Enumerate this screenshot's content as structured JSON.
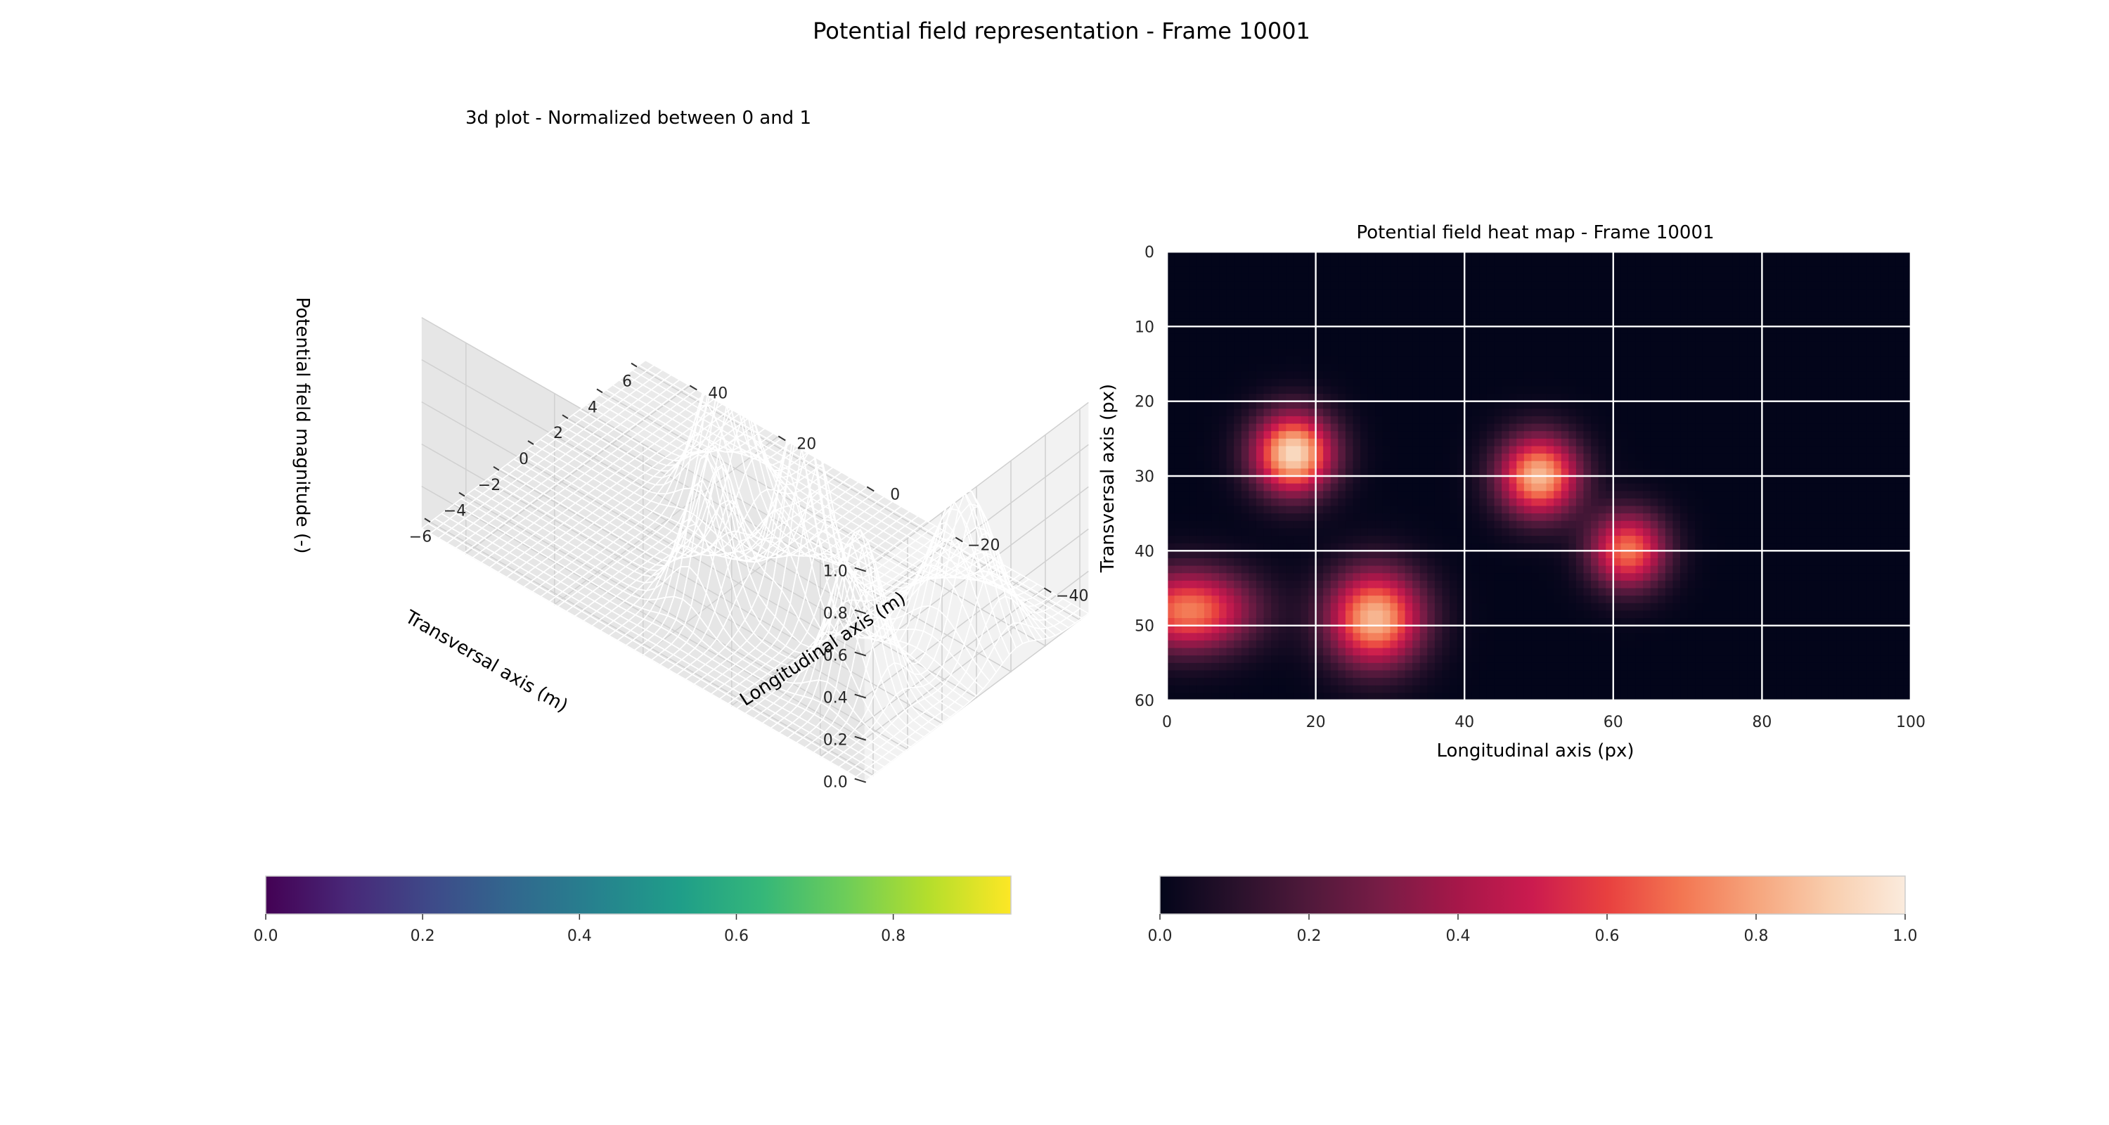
{
  "figure": {
    "suptitle": "Potential field representation - Frame 10001"
  },
  "chart_data": [
    {
      "type": "surface3d",
      "title": "3d plot - Normalized between 0 and 1",
      "xlabel": "Longitudinal axis (m)",
      "ylabel": "Transversal axis (m)",
      "zlabel": "Potential field magnitude (-)",
      "xlim": [
        -50,
        50
      ],
      "ylim": [
        -6.5,
        6.5
      ],
      "zlim": [
        0,
        1
      ],
      "x_ticks": [
        -40,
        -20,
        0,
        20,
        40
      ],
      "y_ticks": [
        -6,
        -4,
        -2,
        0,
        2,
        4,
        6
      ],
      "z_ticks": [
        "0.0",
        "0.2",
        "0.4",
        "0.6",
        "0.8",
        "1.0"
      ],
      "colormap": "viridis",
      "peaks": [
        {
          "x": -33,
          "y": -2.5,
          "z": 0.75,
          "sx": 4.5,
          "sy": 0.9
        },
        {
          "x": 0,
          "y": -2.5,
          "z": 0.75,
          "sx": 4.5,
          "sy": 0.9
        },
        {
          "x": -12,
          "y": -0.3,
          "z": 0.95,
          "sx": 4.5,
          "sy": 0.9
        },
        {
          "x": 16,
          "y": 2.4,
          "z": 0.75,
          "sx": 4.5,
          "sy": 0.9
        },
        {
          "x": -38,
          "y": 2.4,
          "z": 0.7,
          "sx": 6.0,
          "sy": 1.1
        }
      ],
      "colorbar": {
        "min": 0.0,
        "max": 0.95,
        "ticks": [
          "0.0",
          "0.2",
          "0.4",
          "0.6",
          "0.8"
        ]
      }
    },
    {
      "type": "heatmap",
      "title": "Potential field heat map - Frame 10001",
      "xlabel": "Longitudinal axis (px)",
      "ylabel": "Transversal axis (px)",
      "xlim": [
        0,
        100
      ],
      "ylim": [
        60,
        0
      ],
      "x_ticks": [
        "0",
        "20",
        "40",
        "60",
        "80",
        "100"
      ],
      "y_ticks": [
        "0",
        "10",
        "20",
        "30",
        "40",
        "50",
        "60"
      ],
      "colormap": "rocket",
      "grid": true,
      "blobs": [
        {
          "x": 17,
          "y": 27,
          "v": 0.95,
          "sx": 3.8,
          "sy": 3.8
        },
        {
          "x": 50,
          "y": 30,
          "v": 0.85,
          "sx": 3.8,
          "sy": 3.8
        },
        {
          "x": 62,
          "y": 40,
          "v": 0.7,
          "sx": 3.6,
          "sy": 3.6
        },
        {
          "x": 28,
          "y": 49,
          "v": 0.85,
          "sx": 4.5,
          "sy": 4.5
        },
        {
          "x": 3,
          "y": 48,
          "v": 0.72,
          "sx": 6.0,
          "sy": 3.8
        }
      ],
      "colorbar": {
        "min": 0.0,
        "max": 1.0,
        "ticks": [
          "0.0",
          "0.2",
          "0.4",
          "0.6",
          "0.8",
          "1.0"
        ]
      }
    }
  ]
}
